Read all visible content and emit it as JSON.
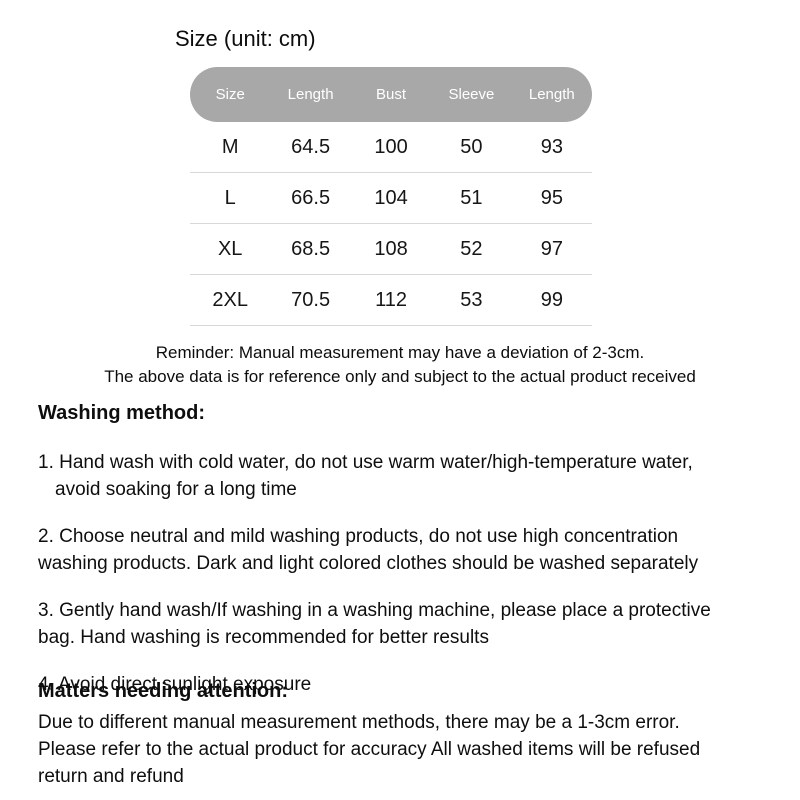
{
  "page": {
    "background": "#ffffff",
    "text_color": "#111111"
  },
  "size_section": {
    "title": "Size (unit: cm)",
    "table": {
      "header_bg": "#a8a8a8",
      "header_text_color": "#ffffff",
      "separator_color": "#d8d8d8",
      "columns": [
        "Size",
        "Length",
        "Bust",
        "Sleeve",
        "Length"
      ],
      "rows": [
        [
          "M",
          "64.5",
          "100",
          "50",
          "93"
        ],
        [
          "L",
          "66.5",
          "104",
          "51",
          "95"
        ],
        [
          "XL",
          "68.5",
          "108",
          "52",
          "97"
        ],
        [
          "2XL",
          "70.5",
          "112",
          "53",
          "99"
        ]
      ]
    },
    "reminder": {
      "line1": "Reminder: Manual measurement may have a deviation of 2-3cm.",
      "line2": "The above data is for reference only and subject to the actual product received"
    }
  },
  "washing": {
    "heading": "Washing method:",
    "items": [
      {
        "lines": [
          "1. Hand wash with cold water, do not use warm water/high-temperature water,",
          "avoid soaking for a long time"
        ]
      },
      {
        "lines": [
          "2. Choose neutral and mild washing products, do not use high concentration",
          "washing products. Dark and light colored clothes should be washed separately"
        ]
      },
      {
        "lines": [
          "3. Gently hand wash/If washing in a washing machine, please place a protective",
          "bag. Hand washing is recommended for better results"
        ]
      },
      {
        "lines": [
          "4. Avoid direct sunlight exposure"
        ]
      }
    ]
  },
  "attention": {
    "heading": "Matters needing attention:",
    "lines": [
      "Due to different manual measurement methods, there may be a 1-3cm error.",
      "Please refer to the actual product for accuracy All washed items will be refused",
      "return and refund"
    ]
  }
}
